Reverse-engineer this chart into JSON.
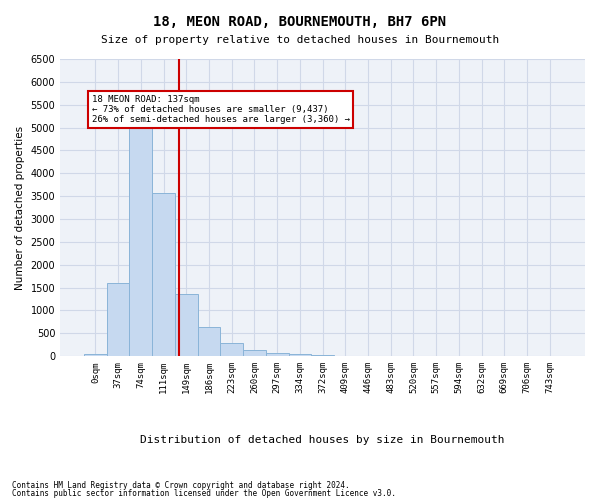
{
  "title": "18, MEON ROAD, BOURNEMOUTH, BH7 6PN",
  "subtitle": "Size of property relative to detached houses in Bournemouth",
  "xlabel": "Distribution of detached houses by size in Bournemouth",
  "ylabel": "Number of detached properties",
  "categories": [
    "0sqm",
    "37sqm",
    "74sqm",
    "111sqm",
    "149sqm",
    "186sqm",
    "223sqm",
    "260sqm",
    "297sqm",
    "334sqm",
    "372sqm",
    "409sqm",
    "446sqm",
    "483sqm",
    "520sqm",
    "557sqm",
    "594sqm",
    "632sqm",
    "669sqm",
    "706sqm",
    "743sqm"
  ],
  "values": [
    50,
    1600,
    5050,
    3580,
    1350,
    650,
    290,
    145,
    80,
    48,
    28,
    12,
    5,
    3,
    2,
    1,
    1,
    0,
    0,
    0,
    0
  ],
  "bar_color": "#c6d9f0",
  "bar_edge_color": "#8ab4d8",
  "vline_x": 3.7,
  "vline_color": "#cc0000",
  "annotation_text": "18 MEON ROAD: 137sqm\n← 73% of detached houses are smaller (9,437)\n26% of semi-detached houses are larger (3,360) →",
  "annotation_box_color": "#ffffff",
  "annotation_box_edge": "#cc0000",
  "ylim": [
    0,
    6500
  ],
  "yticks": [
    0,
    500,
    1000,
    1500,
    2000,
    2500,
    3000,
    3500,
    4000,
    4500,
    5000,
    5500,
    6000,
    6500
  ],
  "grid_color": "#d0d8e8",
  "background_color": "#eef2f8",
  "footer1": "Contains HM Land Registry data © Crown copyright and database right 2024.",
  "footer2": "Contains public sector information licensed under the Open Government Licence v3.0."
}
